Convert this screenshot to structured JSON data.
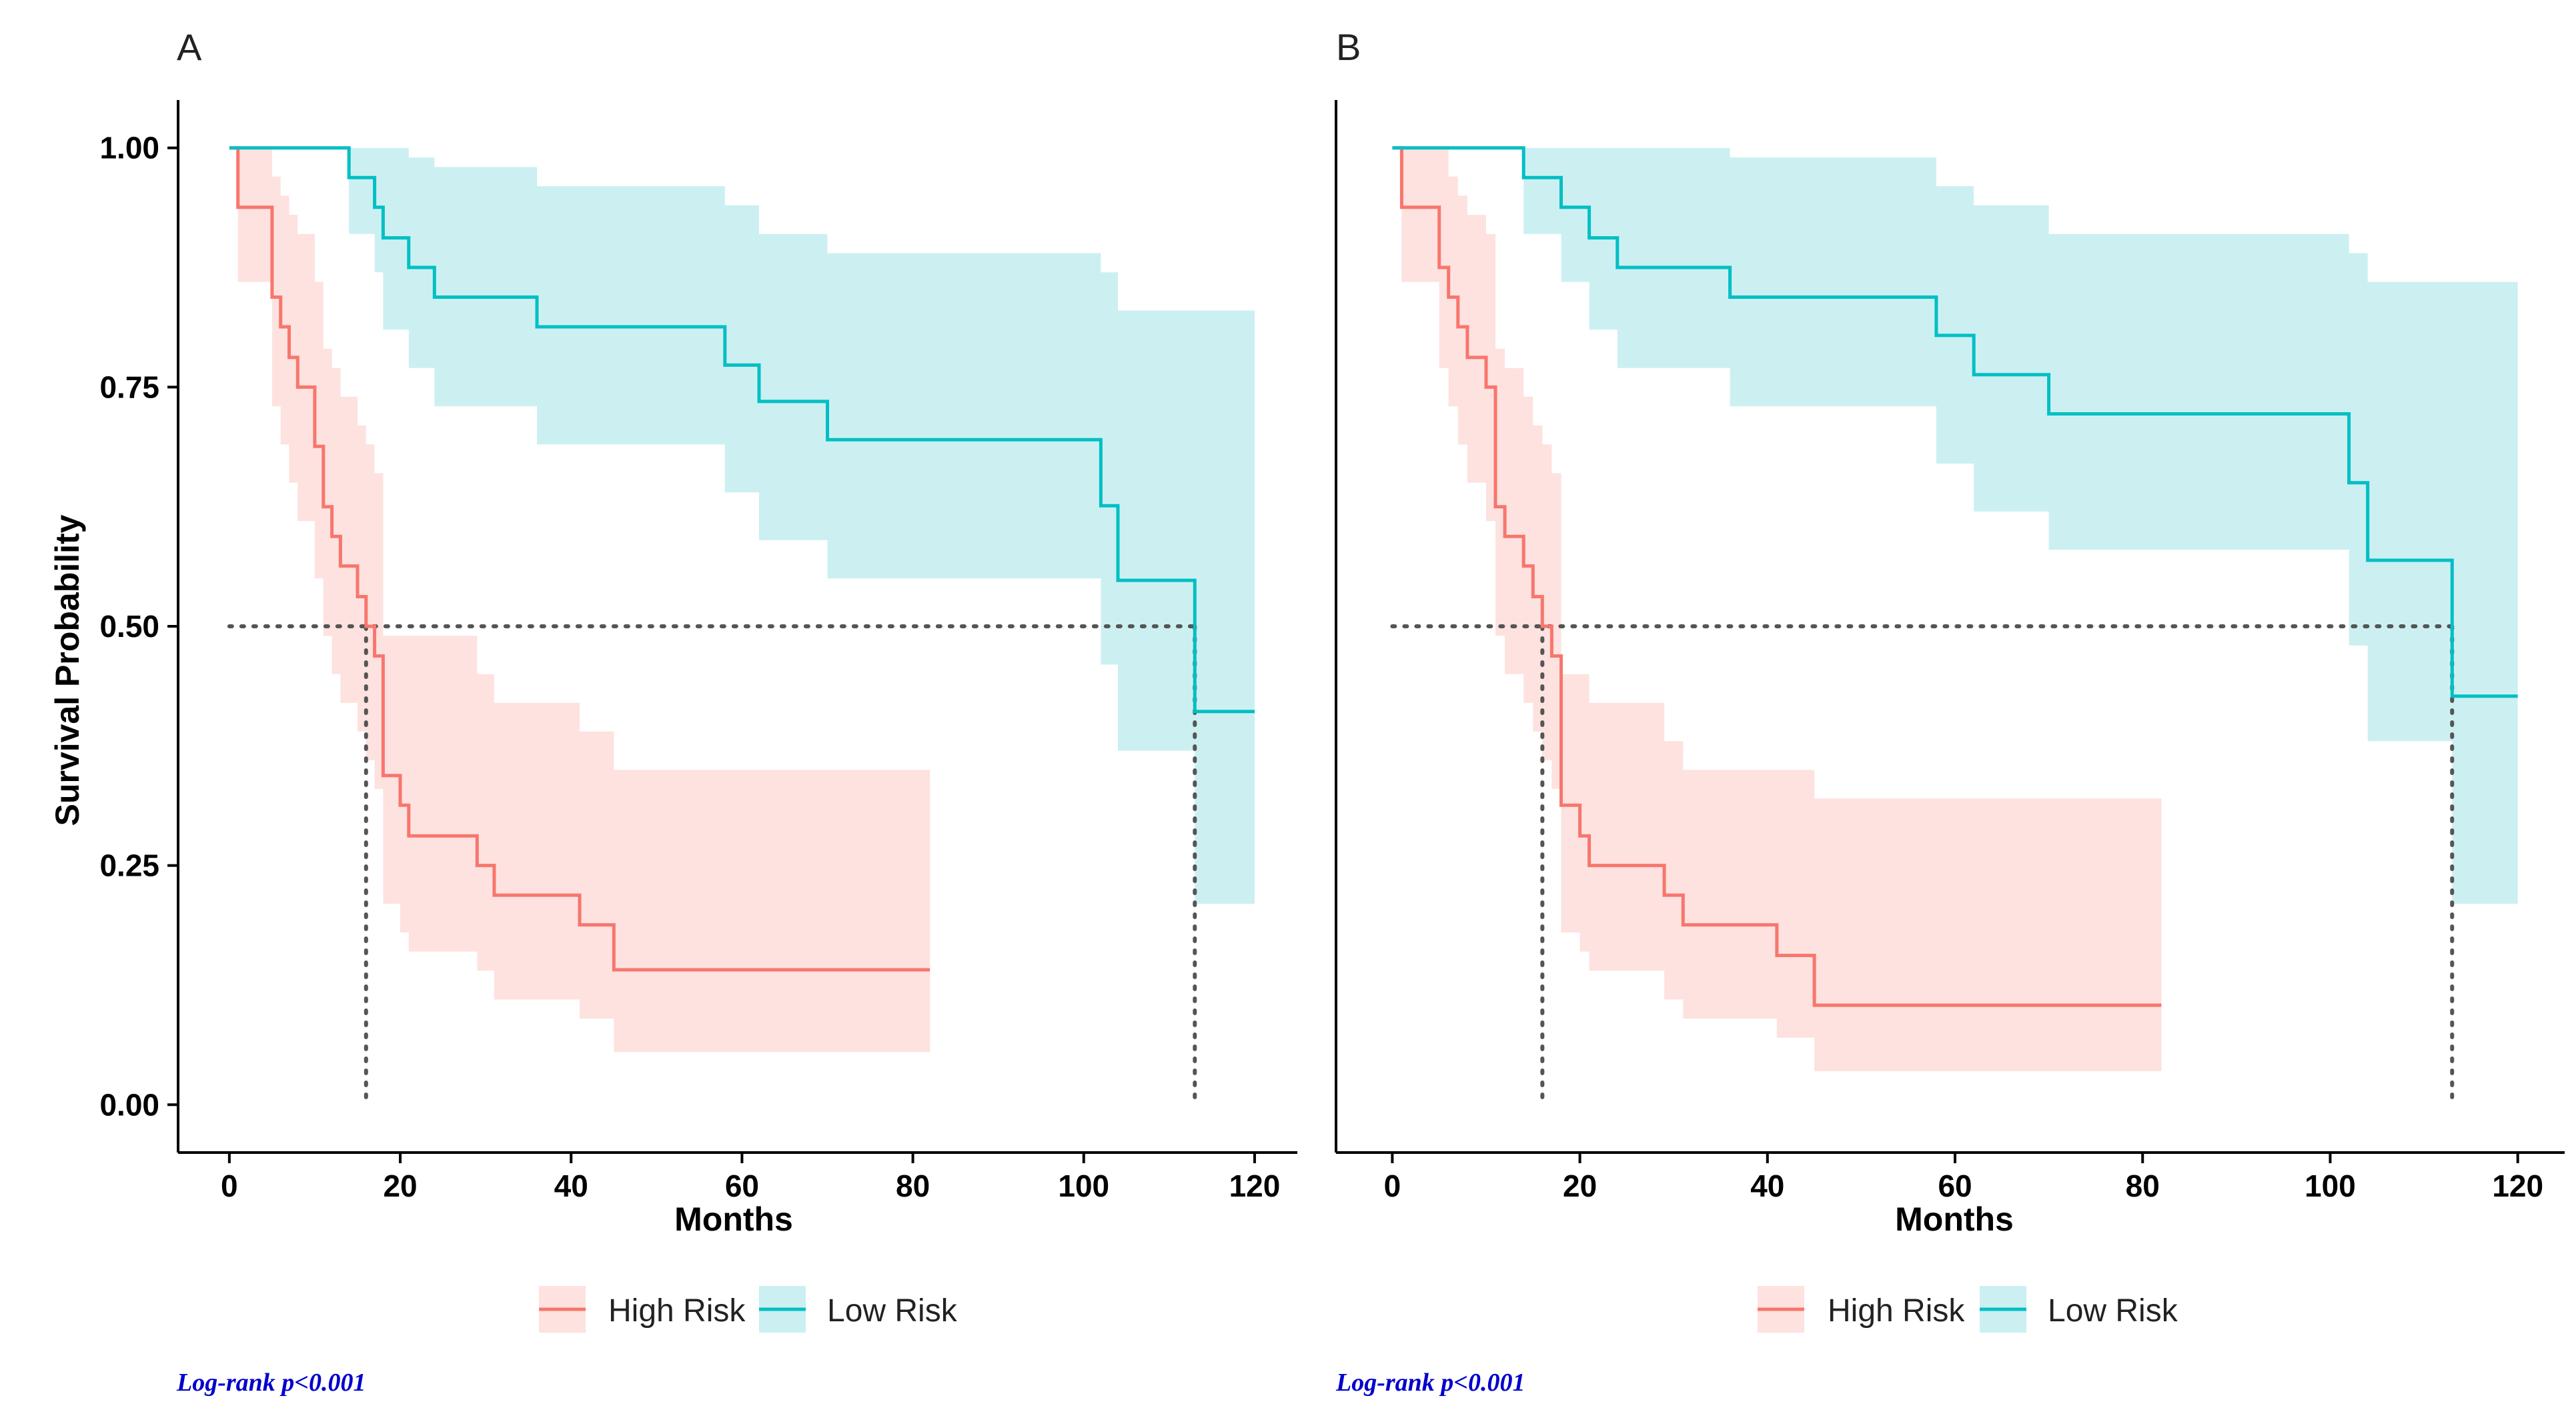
{
  "colors": {
    "high_risk_line": "#F8766D",
    "high_risk_band": "#FDE2DF",
    "low_risk_line": "#00BFC4",
    "low_risk_band": "#CCF0F2",
    "annotation": "#0000CC",
    "reference_line": "#555555"
  },
  "chart_data": [
    {
      "type": "line",
      "subtype": "kaplan-meier",
      "panel_label": "A",
      "xlabel": "Months",
      "ylabel": "Survival Probability",
      "xlim": [
        -6,
        125
      ],
      "ylim": [
        -0.05,
        1.05
      ],
      "xticks": [
        0,
        20,
        40,
        60,
        80,
        100,
        120
      ],
      "yticks": [
        0,
        0.25,
        0.5,
        0.75,
        1.0
      ],
      "ytick_labels": [
        "0.00",
        "0.25",
        "0.50",
        "0.75",
        "1.00"
      ],
      "legend": [
        "High Risk",
        "Low Risk"
      ],
      "legend_position": "bottom",
      "annotation": "Log-rank p<0.001",
      "median_survival": [
        {
          "series": "High Risk",
          "x": 16,
          "y": 0.5
        },
        {
          "series": "Low Risk",
          "x": 113,
          "y": 0.5
        }
      ],
      "series": [
        {
          "name": "High Risk",
          "color_key": "high_risk_line",
          "band_key": "high_risk_band",
          "times": [
            0,
            1,
            5,
            6,
            7,
            8,
            10,
            11,
            12,
            13,
            15,
            16,
            17,
            18,
            20,
            21,
            29,
            31,
            41,
            45,
            82
          ],
          "surv": [
            1.0,
            0.938,
            0.844,
            0.813,
            0.781,
            0.75,
            0.688,
            0.625,
            0.594,
            0.563,
            0.531,
            0.5,
            0.469,
            0.344,
            0.313,
            0.281,
            0.25,
            0.219,
            0.188,
            0.141,
            0.141
          ],
          "lower": [
            1.0,
            0.86,
            0.73,
            0.69,
            0.65,
            0.61,
            0.55,
            0.49,
            0.45,
            0.42,
            0.39,
            0.36,
            0.33,
            0.21,
            0.18,
            0.16,
            0.14,
            0.11,
            0.09,
            0.055,
            0.055
          ],
          "upper": [
            1.0,
            1.0,
            0.97,
            0.95,
            0.93,
            0.91,
            0.86,
            0.79,
            0.77,
            0.74,
            0.71,
            0.69,
            0.66,
            0.49,
            0.49,
            0.49,
            0.45,
            0.42,
            0.39,
            0.35,
            0.35
          ]
        },
        {
          "name": "Low Risk",
          "color_key": "low_risk_line",
          "band_key": "low_risk_band",
          "times": [
            0,
            14,
            17,
            18,
            21,
            24,
            36,
            58,
            62,
            70,
            102,
            104,
            113,
            120
          ],
          "surv": [
            1.0,
            0.969,
            0.938,
            0.906,
            0.875,
            0.844,
            0.813,
            0.773,
            0.735,
            0.695,
            0.626,
            0.548,
            0.411,
            0.411
          ],
          "lower": [
            1.0,
            0.91,
            0.87,
            0.81,
            0.77,
            0.73,
            0.69,
            0.64,
            0.59,
            0.55,
            0.46,
            0.37,
            0.21,
            0.21
          ],
          "upper": [
            1.0,
            1.0,
            1.0,
            1.0,
            0.99,
            0.98,
            0.96,
            0.94,
            0.91,
            0.89,
            0.87,
            0.83,
            0.83,
            0.83
          ]
        }
      ]
    },
    {
      "type": "line",
      "subtype": "kaplan-meier",
      "panel_label": "B",
      "xlabel": "Months",
      "ylabel": "",
      "xlim": [
        -6,
        125
      ],
      "ylim": [
        -0.05,
        1.05
      ],
      "xticks": [
        0,
        20,
        40,
        60,
        80,
        100,
        120
      ],
      "yticks": [],
      "ytick_labels": [],
      "legend": [
        "High Risk",
        "Low Risk"
      ],
      "legend_position": "bottom",
      "annotation": "Log-rank p<0.001",
      "median_survival": [
        {
          "series": "High Risk",
          "x": 16,
          "y": 0.5
        },
        {
          "series": "Low Risk",
          "x": 113,
          "y": 0.5
        }
      ],
      "series": [
        {
          "name": "High Risk",
          "color_key": "high_risk_line",
          "band_key": "high_risk_band",
          "times": [
            0,
            1,
            5,
            6,
            7,
            8,
            10,
            11,
            12,
            14,
            15,
            16,
            17,
            18,
            20,
            21,
            29,
            31,
            41,
            45,
            82
          ],
          "surv": [
            1.0,
            0.938,
            0.875,
            0.844,
            0.813,
            0.781,
            0.75,
            0.625,
            0.594,
            0.563,
            0.531,
            0.5,
            0.469,
            0.313,
            0.281,
            0.25,
            0.219,
            0.188,
            0.156,
            0.104,
            0.104
          ],
          "lower": [
            1.0,
            0.86,
            0.77,
            0.73,
            0.69,
            0.65,
            0.61,
            0.49,
            0.45,
            0.42,
            0.39,
            0.36,
            0.33,
            0.18,
            0.16,
            0.14,
            0.11,
            0.09,
            0.07,
            0.035,
            0.035
          ],
          "upper": [
            1.0,
            1.0,
            1.0,
            0.97,
            0.95,
            0.93,
            0.91,
            0.79,
            0.77,
            0.74,
            0.71,
            0.69,
            0.66,
            0.45,
            0.45,
            0.42,
            0.38,
            0.35,
            0.35,
            0.32,
            0.32
          ]
        },
        {
          "name": "Low Risk",
          "color_key": "low_risk_line",
          "band_key": "low_risk_band",
          "times": [
            0,
            14,
            18,
            21,
            24,
            36,
            58,
            62,
            70,
            102,
            104,
            113,
            120
          ],
          "surv": [
            1.0,
            0.969,
            0.938,
            0.906,
            0.875,
            0.844,
            0.804,
            0.763,
            0.722,
            0.65,
            0.569,
            0.427,
            0.427
          ],
          "lower": [
            1.0,
            0.91,
            0.86,
            0.81,
            0.77,
            0.73,
            0.67,
            0.62,
            0.58,
            0.48,
            0.38,
            0.21,
            0.21
          ],
          "upper": [
            1.0,
            1.0,
            1.0,
            1.0,
            1.0,
            0.99,
            0.96,
            0.94,
            0.91,
            0.89,
            0.86,
            0.86,
            0.86
          ]
        }
      ]
    }
  ]
}
